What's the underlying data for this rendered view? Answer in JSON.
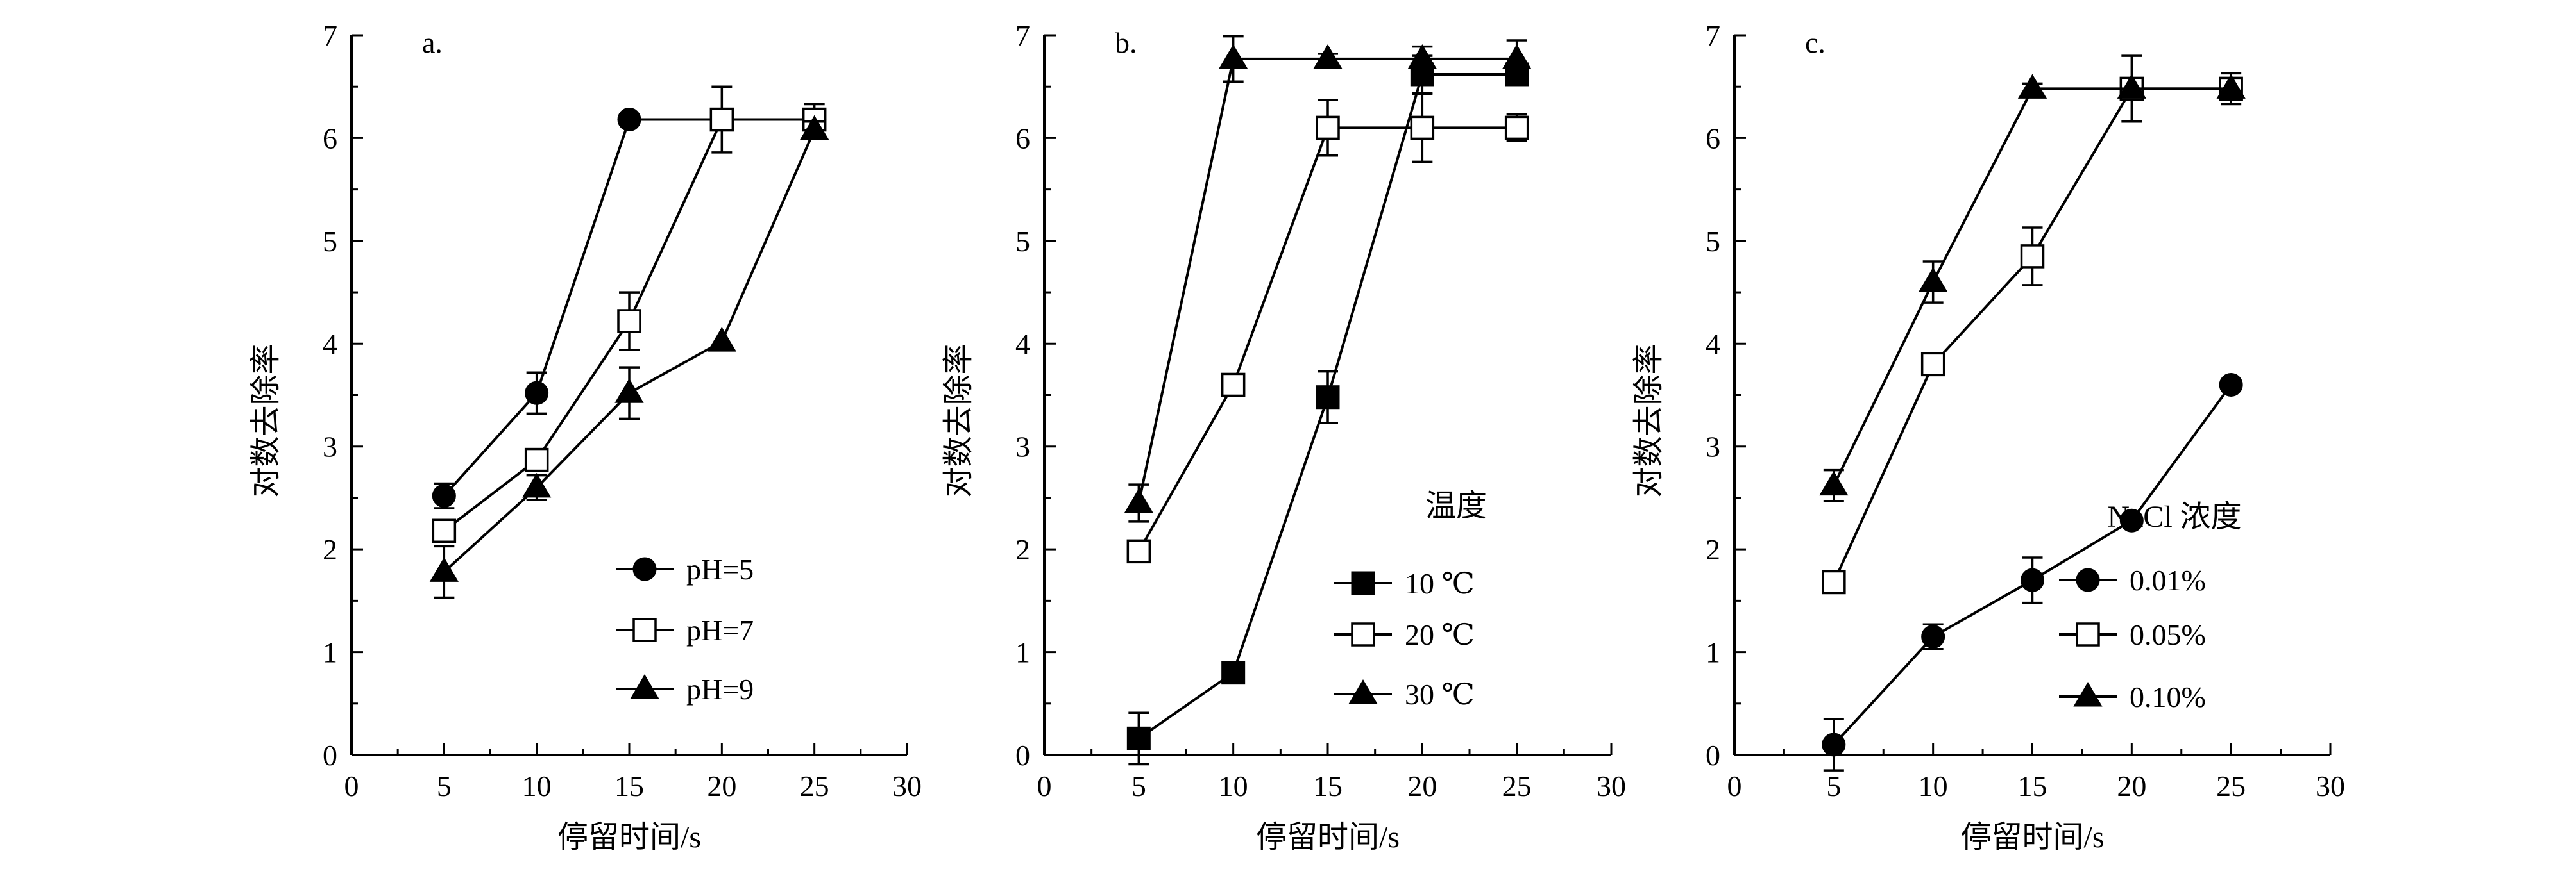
{
  "chart_data": [
    {
      "type": "line",
      "panel_label": "a.",
      "xlabel": "停留时间/s",
      "ylabel": "对数去除率",
      "xlim": [
        0,
        30
      ],
      "ylim": [
        0,
        7
      ],
      "x_ticks": [
        0,
        5,
        10,
        15,
        20,
        25,
        30
      ],
      "y_ticks": [
        0,
        1,
        2,
        3,
        4,
        5,
        6,
        7
      ],
      "grid": false,
      "legend_title": "",
      "legend_position": "bottom-right",
      "x": [
        5,
        10,
        15,
        20,
        25
      ],
      "series": [
        {
          "name": "pH=5",
          "marker": "filled-circle",
          "values": [
            2.52,
            3.52,
            6.18,
            6.18,
            6.18
          ],
          "errors": [
            0.12,
            0.2,
            0.0,
            0.0,
            0.0
          ]
        },
        {
          "name": "pH=7",
          "marker": "open-square",
          "values": [
            2.18,
            2.87,
            4.22,
            6.18,
            6.18
          ],
          "errors": [
            0.0,
            0.1,
            0.28,
            0.32,
            0.15
          ]
        },
        {
          "name": "pH=9",
          "marker": "filled-triangle",
          "values": [
            1.78,
            2.6,
            3.52,
            4.02,
            6.08
          ],
          "errors": [
            0.25,
            0.12,
            0.25,
            0.0,
            0.08
          ]
        }
      ]
    },
    {
      "type": "line",
      "panel_label": "b.",
      "xlabel": "停留时间/s",
      "ylabel": "对数去除率",
      "xlim": [
        0,
        30
      ],
      "ylim": [
        0,
        7
      ],
      "x_ticks": [
        0,
        5,
        10,
        15,
        20,
        25,
        30
      ],
      "y_ticks": [
        0,
        1,
        2,
        3,
        4,
        5,
        6,
        7
      ],
      "grid": false,
      "legend_title": "温度",
      "legend_position": "bottom-right",
      "x": [
        5,
        10,
        15,
        20,
        25
      ],
      "series": [
        {
          "name": "10 ℃",
          "marker": "filled-square",
          "values": [
            0.16,
            0.8,
            3.48,
            6.62,
            6.62
          ],
          "errors": [
            0.25,
            0.08,
            0.25,
            0.18,
            0.1
          ]
        },
        {
          "name": "20 ℃",
          "marker": "open-square",
          "values": [
            1.98,
            3.6,
            6.1,
            6.1,
            6.1
          ],
          "errors": [
            0.0,
            0.0,
            0.27,
            0.33,
            0.13
          ]
        },
        {
          "name": "30 ℃",
          "marker": "filled-triangle",
          "values": [
            2.45,
            6.77,
            6.77,
            6.77,
            6.77
          ],
          "errors": [
            0.18,
            0.22,
            0.05,
            0.12,
            0.18
          ]
        }
      ]
    },
    {
      "type": "line",
      "panel_label": "c.",
      "xlabel": "停留时间/s",
      "ylabel": "对数去除率",
      "xlim": [
        0,
        30
      ],
      "ylim": [
        0,
        7
      ],
      "x_ticks": [
        0,
        5,
        10,
        15,
        20,
        25,
        30
      ],
      "y_ticks": [
        0,
        1,
        2,
        3,
        4,
        5,
        6,
        7
      ],
      "grid": false,
      "legend_title": "NaCl 浓度",
      "legend_position": "bottom-right",
      "x": [
        5,
        10,
        15,
        20,
        25
      ],
      "series": [
        {
          "name": "0.01%",
          "marker": "filled-circle",
          "values": [
            0.1,
            1.15,
            1.7,
            2.28,
            3.6
          ],
          "errors": [
            0.25,
            0.12,
            0.22,
            0.0,
            0.0
          ]
        },
        {
          "name": "0.05%",
          "marker": "open-square",
          "values": [
            1.68,
            3.8,
            4.85,
            6.48,
            6.48
          ],
          "errors": [
            0.0,
            0.0,
            0.28,
            0.32,
            0.15
          ]
        },
        {
          "name": "0.10%",
          "marker": "filled-triangle",
          "values": [
            2.62,
            4.6,
            6.48,
            6.48,
            6.48
          ],
          "errors": [
            0.15,
            0.2,
            0.05,
            0.0,
            0.1
          ]
        }
      ]
    }
  ]
}
